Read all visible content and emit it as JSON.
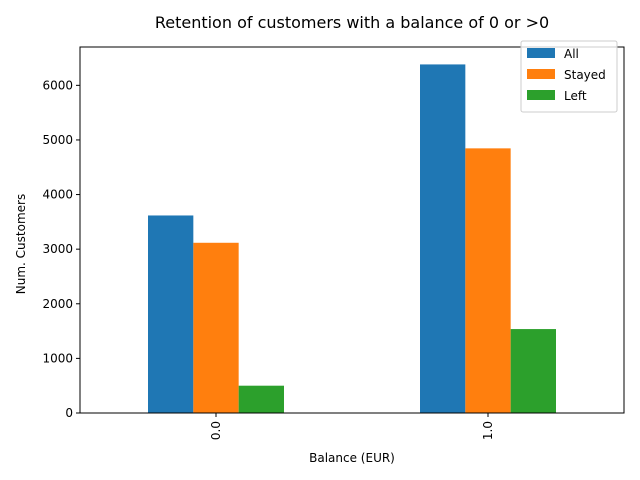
{
  "chart_data": {
    "type": "bar",
    "title": "Retention of customers with a balance of 0 or >0",
    "xlabel": "Balance (EUR)",
    "ylabel": "Num. Customers",
    "categories": [
      "0.0",
      "1.0"
    ],
    "series": [
      {
        "name": "All",
        "color": "#1f77b4",
        "values": [
          3617,
          6383
        ]
      },
      {
        "name": "Stayed",
        "color": "#ff7f0e",
        "values": [
          3117,
          4846
        ]
      },
      {
        "name": "Left",
        "color": "#2ca02c",
        "values": [
          500,
          1537
        ]
      }
    ],
    "ylim": [
      0,
      6702
    ],
    "yticks": [
      0,
      1000,
      2000,
      3000,
      4000,
      5000,
      6000
    ],
    "legend": "top-right",
    "grid": false
  }
}
